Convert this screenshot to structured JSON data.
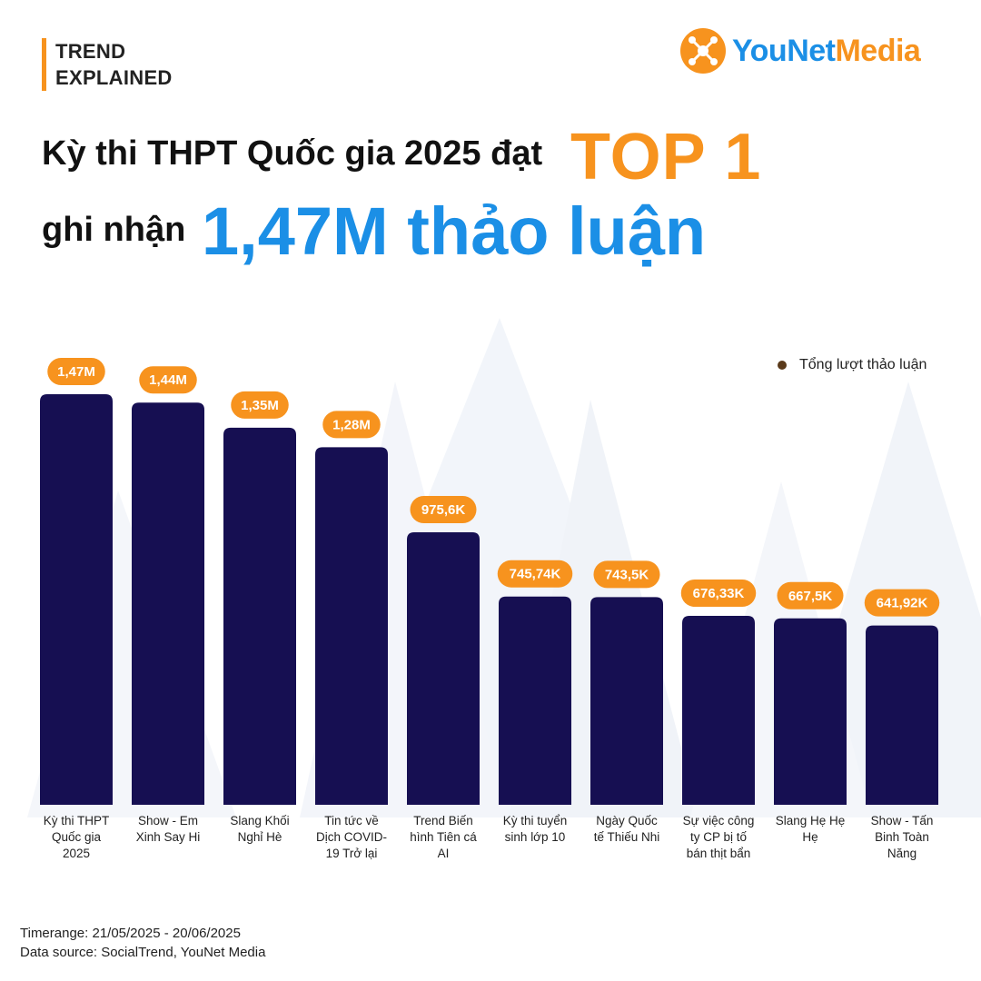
{
  "header": {
    "tag_line1": "TREND",
    "tag_line2": "EXPLAINED",
    "logo_part1": "YouNet",
    "logo_part2": "Media"
  },
  "headline": {
    "line1": "Kỳ thi THPT Quốc gia 2025 đạt",
    "highlight1": "TOP 1",
    "line2": "ghi nhận",
    "highlight2": "1,47M thảo luận"
  },
  "colors": {
    "bar": "#160f52",
    "label_bg": "#f7931e",
    "orange": "#f7931e",
    "blue": "#1b8fe6"
  },
  "chart_data": {
    "type": "bar",
    "title": "",
    "xlabel": "",
    "ylabel": "",
    "ylim": [
      0,
      1470000
    ],
    "grid": false,
    "legend_position": "top-right",
    "series": [
      {
        "name": "Tổng lượt thảo luận",
        "values": [
          1470000,
          1440000,
          1350000,
          1280000,
          975600,
          745740,
          743500,
          676330,
          667500,
          641920
        ],
        "labels": [
          "1,47M",
          "1,44M",
          "1,35M",
          "1,28M",
          "975,6K",
          "745,74K",
          "743,5K",
          "676,33K",
          "667,5K",
          "641,92K"
        ]
      }
    ],
    "categories": [
      [
        "Kỳ thi THPT",
        "Quốc gia",
        "2025"
      ],
      [
        "Show - Em",
        "Xinh Say Hi"
      ],
      [
        "Slang Khối",
        "Nghỉ Hè"
      ],
      [
        "Tin tức về",
        "Dịch COVID-",
        "19 Trở lại"
      ],
      [
        "Trend Biến",
        "hình Tiên cá",
        "AI"
      ],
      [
        "Kỳ thi tuyển",
        "sinh lớp 10"
      ],
      [
        "Ngày Quốc",
        "tế Thiếu Nhi"
      ],
      [
        "Sự việc công",
        "ty CP bị tố",
        "bán thịt bẩn"
      ],
      [
        "Slang Hẹ Hẹ",
        "Hẹ"
      ],
      [
        "Show - Tấn",
        "Binh Toàn",
        "Năng"
      ]
    ]
  },
  "footer": {
    "timerange": "Timerange: 21/05/2025 - 20/06/2025",
    "source": "Data source: SocialTrend, YouNet Media"
  }
}
